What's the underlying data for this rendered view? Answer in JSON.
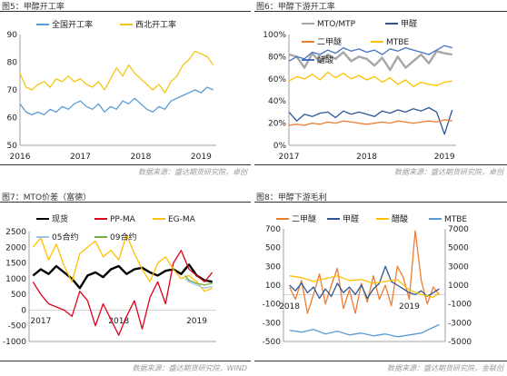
{
  "panels": [
    {
      "title": "图5：甲醇开工率",
      "source": "数据来源：盛达期货研究院，卓创"
    },
    {
      "title": "图6：甲醇下游开工率",
      "source": "数据来源：盛达期货研究院，卓创"
    },
    {
      "title": "图7：MTO价差（富德）",
      "source": "数据来源：盛达期货研究院，WIND"
    },
    {
      "title": "图8：甲醇下游毛利",
      "source": "数据来源：盛达期货研究院，金联创"
    }
  ],
  "chart_data": [
    {
      "type": "line",
      "x_ticks": [
        "2016",
        "2017",
        "2018",
        "2019"
      ],
      "ylim": [
        50,
        90
      ],
      "y_ticks": [
        50,
        60,
        70,
        80,
        90
      ],
      "legend_position": "top",
      "series": [
        {
          "name": "全国开工率",
          "color": "#5b9bd5",
          "x": [
            2016.0,
            2016.1,
            2016.2,
            2016.3,
            2016.4,
            2016.5,
            2016.6,
            2016.7,
            2016.8,
            2016.9,
            2017.0,
            2017.1,
            2017.2,
            2017.3,
            2017.4,
            2017.5,
            2017.6,
            2017.7,
            2017.8,
            2017.9,
            2018.0,
            2018.1,
            2018.2,
            2018.3,
            2018.4,
            2018.5,
            2018.6,
            2018.7,
            2018.8,
            2018.9,
            2019.0,
            2019.1,
            2019.2
          ],
          "values": [
            65,
            62,
            61,
            62,
            61,
            63,
            62,
            64,
            63,
            65,
            66,
            64,
            63,
            65,
            62,
            64,
            63,
            66,
            65,
            67,
            65,
            63,
            62,
            64,
            63,
            66,
            67,
            68,
            69,
            70,
            69,
            71,
            70
          ]
        },
        {
          "name": "西北开工率",
          "color": "#f5c518",
          "x": [
            2016.0,
            2016.1,
            2016.2,
            2016.3,
            2016.4,
            2016.5,
            2016.6,
            2016.7,
            2016.8,
            2016.9,
            2017.0,
            2017.1,
            2017.2,
            2017.3,
            2017.4,
            2017.5,
            2017.6,
            2017.7,
            2017.8,
            2017.9,
            2018.0,
            2018.1,
            2018.2,
            2018.3,
            2018.4,
            2018.5,
            2018.6,
            2018.7,
            2018.8,
            2018.9,
            2019.0,
            2019.1,
            2019.2
          ],
          "values": [
            76,
            71,
            70,
            72,
            73,
            71,
            74,
            73,
            75,
            73,
            74,
            72,
            71,
            73,
            70,
            74,
            78,
            75,
            79,
            76,
            74,
            72,
            70,
            72,
            69,
            73,
            75,
            79,
            81,
            84,
            83,
            82,
            79
          ]
        }
      ]
    },
    {
      "type": "line",
      "x_ticks": [
        "2017",
        "2018",
        "2019"
      ],
      "ylim": [
        0,
        100
      ],
      "y_ticks": [
        "0%",
        "20%",
        "40%",
        "60%",
        "80%",
        "100%"
      ],
      "legend_position": "top",
      "series": [
        {
          "name": "MTO/MTP",
          "color": "#a6a6a6",
          "x": [
            2017.0,
            2017.1,
            2017.2,
            2017.3,
            2017.4,
            2017.5,
            2017.6,
            2017.7,
            2017.8,
            2017.9,
            2018.0,
            2018.1,
            2018.2,
            2018.3,
            2018.4,
            2018.5,
            2018.6,
            2018.7,
            2018.8,
            2018.9,
            2019.0,
            2019.1
          ],
          "values": [
            82,
            80,
            70,
            83,
            75,
            82,
            78,
            84,
            76,
            80,
            78,
            72,
            79,
            68,
            80,
            70,
            76,
            82,
            74,
            85,
            83,
            82
          ]
        },
        {
          "name": "甲醛",
          "color": "#2f5597",
          "x": [
            2017.0,
            2017.1,
            2017.2,
            2017.3,
            2017.4,
            2017.5,
            2017.6,
            2017.7,
            2017.8,
            2017.9,
            2018.0,
            2018.1,
            2018.2,
            2018.3,
            2018.4,
            2018.5,
            2018.6,
            2018.7,
            2018.8,
            2018.9,
            2019.0,
            2019.1
          ],
          "values": [
            30,
            22,
            28,
            26,
            29,
            30,
            25,
            31,
            28,
            30,
            28,
            26,
            31,
            29,
            32,
            30,
            33,
            31,
            34,
            30,
            10,
            32
          ]
        },
        {
          "name": "二甲醚",
          "color": "#ed7d31",
          "x": [
            2017.0,
            2017.1,
            2017.2,
            2017.3,
            2017.4,
            2017.5,
            2017.6,
            2017.7,
            2017.8,
            2017.9,
            2018.0,
            2018.1,
            2018.2,
            2018.3,
            2018.4,
            2018.5,
            2018.6,
            2018.7,
            2018.8,
            2018.9,
            2019.0,
            2019.1
          ],
          "values": [
            18,
            19,
            18,
            20,
            19,
            21,
            20,
            22,
            21,
            20,
            19,
            20,
            21,
            20,
            22,
            21,
            20,
            21,
            22,
            21,
            23,
            22
          ]
        },
        {
          "name": "MTBE",
          "color": "#ffc000",
          "x": [
            2017.0,
            2017.1,
            2017.2,
            2017.3,
            2017.4,
            2017.5,
            2017.6,
            2017.7,
            2017.8,
            2017.9,
            2018.0,
            2018.1,
            2018.2,
            2018.3,
            2018.4,
            2018.5,
            2018.6,
            2018.7,
            2018.8,
            2018.9,
            2019.0,
            2019.1
          ],
          "values": [
            58,
            62,
            60,
            64,
            59,
            66,
            61,
            65,
            60,
            63,
            59,
            62,
            57,
            61,
            55,
            59,
            53,
            57,
            55,
            54,
            57,
            58
          ]
        },
        {
          "name": "醋酸",
          "color": "#4472c4",
          "x": [
            2017.0,
            2017.1,
            2017.2,
            2017.3,
            2017.4,
            2017.5,
            2017.6,
            2017.7,
            2017.8,
            2017.9,
            2018.0,
            2018.1,
            2018.2,
            2018.3,
            2018.4,
            2018.5,
            2018.6,
            2018.7,
            2018.8,
            2018.9,
            2019.0,
            2019.1
          ],
          "values": [
            76,
            80,
            78,
            84,
            82,
            86,
            83,
            88,
            85,
            87,
            84,
            86,
            82,
            87,
            85,
            88,
            86,
            84,
            82,
            86,
            90,
            88
          ]
        }
      ]
    },
    {
      "type": "line",
      "x_ticks": [
        "2017",
        "2018",
        "2019"
      ],
      "ylim": [
        -1000,
        2500
      ],
      "y_ticks": [
        -1000,
        -500,
        0,
        500,
        1000,
        1500,
        2000,
        2500
      ],
      "legend_position": "top",
      "series": [
        {
          "name": "现货",
          "color": "#000000",
          "x": [
            2016.9,
            2017.0,
            2017.1,
            2017.2,
            2017.3,
            2017.4,
            2017.5,
            2017.6,
            2017.7,
            2017.8,
            2017.9,
            2018.0,
            2018.1,
            2018.2,
            2018.3,
            2018.4,
            2018.5,
            2018.6,
            2018.7,
            2018.8,
            2018.9,
            2019.0,
            2019.1,
            2019.2
          ],
          "values": [
            1100,
            1300,
            1150,
            1400,
            1200,
            1000,
            700,
            1100,
            1200,
            1050,
            1300,
            1400,
            1150,
            1300,
            1350,
            1200,
            1100,
            1250,
            1300,
            1150,
            1450,
            1100,
            950,
            900
          ]
        },
        {
          "name": "PP-MA",
          "color": "#e0001b",
          "x": [
            2016.9,
            2017.0,
            2017.1,
            2017.2,
            2017.3,
            2017.4,
            2017.5,
            2017.6,
            2017.7,
            2017.8,
            2017.9,
            2018.0,
            2018.1,
            2018.2,
            2018.3,
            2018.4,
            2018.5,
            2018.6,
            2018.7,
            2018.8,
            2018.9,
            2019.0,
            2019.1,
            2019.2
          ],
          "values": [
            900,
            500,
            200,
            100,
            0,
            -200,
            600,
            300,
            -500,
            200,
            -300,
            -800,
            -200,
            300,
            -600,
            400,
            900,
            200,
            1500,
            1900,
            1300,
            1100,
            900,
            1200
          ]
        },
        {
          "name": "EG-MA",
          "color": "#ffc000",
          "x": [
            2016.9,
            2017.0,
            2017.1,
            2017.2,
            2017.3,
            2017.4,
            2017.5,
            2017.6,
            2017.7,
            2017.8,
            2017.9,
            2018.0,
            2018.1,
            2018.2,
            2018.3,
            2018.4,
            2018.5,
            2018.6,
            2018.7,
            2018.8,
            2018.9,
            2019.0,
            2019.1,
            2019.2
          ],
          "values": [
            2000,
            2300,
            1600,
            2100,
            1400,
            900,
            1800,
            2000,
            2200,
            1700,
            1900,
            1600,
            2400,
            1800,
            1300,
            900,
            1500,
            1700,
            1300,
            1000,
            1100,
            900,
            600,
            700
          ]
        },
        {
          "name": "05合约",
          "color": "#9dc3e6",
          "x": [
            2018.85,
            2018.9,
            2019.0,
            2019.1,
            2019.2
          ],
          "values": [
            1000,
            900,
            800,
            700,
            750
          ]
        },
        {
          "name": "09合约",
          "color": "#70ad47",
          "x": [
            2018.85,
            2018.9,
            2019.0,
            2019.1,
            2019.2
          ],
          "values": [
            1100,
            950,
            850,
            800,
            850
          ]
        }
      ]
    },
    {
      "type": "line",
      "x_ticks": [
        "2018",
        "2019"
      ],
      "ylim": [
        -500,
        700
      ],
      "y_ticks": [
        -500,
        -300,
        -100,
        100,
        300,
        500,
        700
      ],
      "y2lim": [
        -5000,
        7000
      ],
      "y2_ticks": [
        -5000,
        -3000,
        -1000,
        1000,
        3000,
        5000,
        7000
      ],
      "legend_position": "top",
      "series": [
        {
          "name": "二甲醚",
          "color": "#ed7d31",
          "axis": "left",
          "x": [
            2018.0,
            2018.05,
            2018.1,
            2018.15,
            2018.2,
            2018.25,
            2018.3,
            2018.35,
            2018.4,
            2018.45,
            2018.5,
            2018.55,
            2018.6,
            2018.65,
            2018.7,
            2018.75,
            2018.8,
            2018.85,
            2018.9,
            2018.95,
            2019.0,
            2019.05,
            2019.1,
            2019.15,
            2019.2,
            2019.25
          ],
          "values": [
            80,
            -50,
            150,
            -200,
            0,
            220,
            -100,
            100,
            280,
            -150,
            50,
            -200,
            120,
            -80,
            200,
            -50,
            100,
            -120,
            300,
            180,
            -50,
            680,
            150,
            -100,
            80,
            0
          ]
        },
        {
          "name": "甲醛",
          "color": "#2f5597",
          "axis": "left",
          "x": [
            2018.0,
            2018.05,
            2018.1,
            2018.15,
            2018.2,
            2018.25,
            2018.3,
            2018.35,
            2018.4,
            2018.45,
            2018.5,
            2018.55,
            2018.6,
            2018.65,
            2018.7,
            2018.75,
            2018.8,
            2018.85,
            2018.9,
            2018.95,
            2019.0,
            2019.05,
            2019.1,
            2019.15,
            2019.2,
            2019.25
          ],
          "values": [
            100,
            40,
            120,
            20,
            80,
            -40,
            60,
            -20,
            120,
            20,
            80,
            0,
            100,
            -40,
            60,
            120,
            300,
            140,
            100,
            60,
            20,
            0,
            40,
            -20,
            20,
            60
          ]
        },
        {
          "name": "醋酸",
          "color": "#ffc000",
          "axis": "right",
          "x": [
            2018.0,
            2018.1,
            2018.2,
            2018.3,
            2018.4,
            2018.5,
            2018.6,
            2018.7,
            2018.8,
            2018.9,
            2019.0,
            2019.1,
            2019.2,
            2019.25
          ],
          "values": [
            2000,
            1800,
            1400,
            1700,
            2000,
            1500,
            1600,
            1200,
            1400,
            1600,
            500,
            0,
            -300,
            200
          ]
        },
        {
          "name": "MTBE",
          "color": "#5b9bd5",
          "axis": "right",
          "x": [
            2018.0,
            2018.1,
            2018.2,
            2018.3,
            2018.4,
            2018.5,
            2018.6,
            2018.7,
            2018.8,
            2018.9,
            2019.0,
            2019.1,
            2019.2,
            2019.25
          ],
          "values": [
            -3800,
            -4000,
            -3700,
            -4200,
            -3900,
            -4300,
            -4100,
            -4400,
            -4200,
            -4500,
            -4300,
            -4100,
            -3500,
            -3200
          ]
        }
      ]
    }
  ]
}
